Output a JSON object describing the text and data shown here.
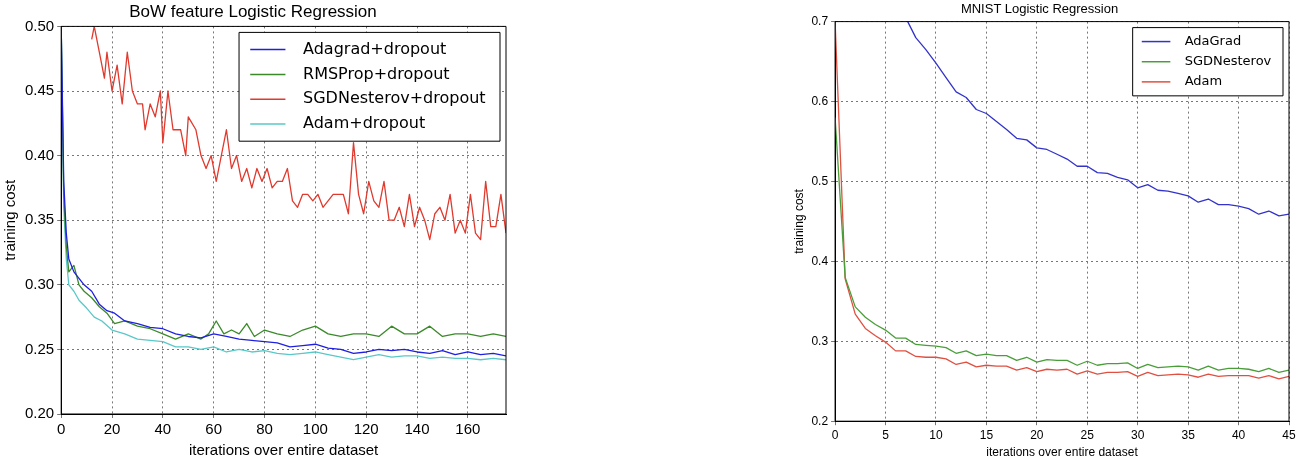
{
  "chart_data": [
    {
      "type": "line",
      "title": "BoW feature Logistic Regression",
      "xlabel": "iterations over entire dataset",
      "ylabel": "training cost",
      "xlim": [
        0,
        175
      ],
      "xticks": [
        0,
        20,
        40,
        60,
        80,
        100,
        120,
        140,
        160
      ],
      "ylim": [
        0.2,
        0.5
      ],
      "yticks": [
        {
          "value": 0.2,
          "label": "0.20"
        },
        {
          "value": 0.25,
          "label": "0.25"
        },
        {
          "value": 0.3,
          "label": "0.30"
        },
        {
          "value": 0.35,
          "label": "0.35"
        },
        {
          "value": 0.4,
          "label": "0.40"
        },
        {
          "value": 0.45,
          "label": "0.45"
        },
        {
          "value": 0.5,
          "label": "0.50"
        }
      ],
      "grid": true,
      "legend": "top right",
      "marker": "none",
      "line_style": "solid",
      "series": [
        {
          "name": "Adagrad+dropout",
          "color": "#1f1fe0",
          "x": [
            0,
            1,
            2,
            3,
            5,
            7,
            9,
            12,
            15,
            18,
            21,
            25,
            30,
            35,
            40,
            45,
            50,
            55,
            60,
            65,
            70,
            75,
            80,
            85,
            90,
            95,
            100,
            105,
            110,
            115,
            120,
            125,
            130,
            135,
            140,
            145,
            150,
            155,
            160,
            165,
            170,
            175
          ],
          "values": [
            0.5,
            0.38,
            0.34,
            0.32,
            0.31,
            0.305,
            0.3,
            0.295,
            0.285,
            0.28,
            0.278,
            0.272,
            0.27,
            0.267,
            0.266,
            0.262,
            0.26,
            0.259,
            0.262,
            0.26,
            0.258,
            0.257,
            0.256,
            0.255,
            0.252,
            0.253,
            0.254,
            0.251,
            0.25,
            0.247,
            0.248,
            0.25,
            0.249,
            0.25,
            0.248,
            0.247,
            0.249,
            0.246,
            0.248,
            0.246,
            0.247,
            0.245
          ]
        },
        {
          "name": "RMSProp+dropout",
          "color": "#3a8a2a",
          "x": [
            0,
            1,
            2,
            3,
            5,
            7,
            9,
            12,
            15,
            18,
            21,
            25,
            30,
            35,
            40,
            45,
            50,
            55,
            58,
            61,
            64,
            67,
            70,
            73,
            76,
            80,
            85,
            90,
            95,
            100,
            105,
            110,
            115,
            120,
            125,
            130,
            135,
            140,
            145,
            150,
            155,
            160,
            165,
            170,
            175
          ],
          "values": [
            0.5,
            0.37,
            0.33,
            0.31,
            0.315,
            0.3,
            0.295,
            0.29,
            0.283,
            0.278,
            0.27,
            0.272,
            0.268,
            0.266,
            0.262,
            0.258,
            0.262,
            0.258,
            0.262,
            0.272,
            0.262,
            0.265,
            0.262,
            0.27,
            0.26,
            0.265,
            0.262,
            0.26,
            0.265,
            0.268,
            0.262,
            0.26,
            0.262,
            0.262,
            0.26,
            0.268,
            0.262,
            0.262,
            0.268,
            0.26,
            0.262,
            0.262,
            0.26,
            0.262,
            0.26
          ]
        },
        {
          "name": "SGDNesterov+dropout",
          "color": "#e03a2e",
          "x": [
            12,
            13,
            15,
            17,
            18,
            20,
            22,
            24,
            25,
            26,
            28,
            30,
            32,
            33,
            35,
            37,
            39,
            40,
            42,
            44,
            47,
            49,
            50,
            53,
            55,
            57,
            59,
            61,
            63,
            65,
            67,
            69,
            71,
            73,
            75,
            77,
            79,
            81,
            83,
            85,
            87,
            89,
            91,
            93,
            95,
            97,
            99,
            101,
            103,
            105,
            107,
            109,
            111,
            113,
            115,
            117,
            119,
            121,
            123,
            125,
            127,
            129,
            131,
            133,
            135,
            137,
            139,
            141,
            143,
            145,
            147,
            149,
            151,
            153,
            155,
            157,
            159,
            161,
            163,
            165,
            167,
            169,
            171,
            173,
            175
          ],
          "values": [
            0.49,
            0.5,
            0.48,
            0.46,
            0.48,
            0.45,
            0.47,
            0.44,
            0.46,
            0.48,
            0.45,
            0.44,
            0.44,
            0.42,
            0.44,
            0.43,
            0.45,
            0.41,
            0.45,
            0.42,
            0.42,
            0.4,
            0.43,
            0.42,
            0.4,
            0.39,
            0.4,
            0.38,
            0.4,
            0.42,
            0.39,
            0.4,
            0.38,
            0.39,
            0.375,
            0.39,
            0.38,
            0.39,
            0.375,
            0.38,
            0.38,
            0.39,
            0.365,
            0.36,
            0.37,
            0.37,
            0.365,
            0.37,
            0.36,
            0.365,
            0.37,
            0.37,
            0.37,
            0.355,
            0.41,
            0.37,
            0.355,
            0.38,
            0.365,
            0.36,
            0.38,
            0.35,
            0.35,
            0.36,
            0.345,
            0.37,
            0.345,
            0.36,
            0.35,
            0.335,
            0.355,
            0.36,
            0.35,
            0.37,
            0.34,
            0.35,
            0.34,
            0.37,
            0.34,
            0.335,
            0.38,
            0.345,
            0.345,
            0.37,
            0.34
          ]
        },
        {
          "name": "Adam+dropout",
          "color": "#5ac8c8",
          "x": [
            0,
            1,
            2,
            3,
            5,
            7,
            10,
            13,
            16,
            20,
            25,
            30,
            35,
            40,
            45,
            50,
            55,
            60,
            65,
            70,
            75,
            80,
            85,
            90,
            95,
            100,
            105,
            110,
            115,
            120,
            125,
            130,
            135,
            140,
            145,
            150,
            155,
            160,
            165,
            170,
            175
          ],
          "values": [
            0.5,
            0.36,
            0.32,
            0.3,
            0.295,
            0.288,
            0.282,
            0.275,
            0.272,
            0.265,
            0.262,
            0.258,
            0.257,
            0.256,
            0.252,
            0.252,
            0.25,
            0.252,
            0.248,
            0.25,
            0.248,
            0.249,
            0.247,
            0.246,
            0.247,
            0.248,
            0.246,
            0.244,
            0.242,
            0.244,
            0.246,
            0.244,
            0.245,
            0.245,
            0.243,
            0.244,
            0.243,
            0.243,
            0.242,
            0.243,
            0.242
          ]
        }
      ]
    },
    {
      "type": "line",
      "title": "MNIST Logistic Regression",
      "xlabel": "iterations over entire dataset",
      "ylabel": "training cost",
      "xlim": [
        0,
        45
      ],
      "xticks": [
        0,
        5,
        10,
        15,
        20,
        25,
        30,
        35,
        40,
        45
      ],
      "ylim": [
        0.2,
        0.7
      ],
      "yticks": [
        0.2,
        0.3,
        0.4,
        0.5,
        0.6,
        0.7
      ],
      "grid": true,
      "legend": "top right",
      "marker": "none",
      "line_style": "solid",
      "series": [
        {
          "name": "AdaGrad",
          "color": "#3333cc",
          "x": [
            7.2,
            8,
            9,
            10,
            11,
            12,
            13,
            14,
            15,
            16,
            17,
            18,
            19,
            20,
            21,
            22,
            23,
            24,
            25,
            26,
            27,
            28,
            29,
            30,
            31,
            32,
            33,
            34,
            35,
            36,
            37,
            38,
            39,
            40,
            41,
            42,
            43,
            44,
            45
          ],
          "values": [
            0.7,
            0.68,
            0.665,
            0.648,
            0.63,
            0.612,
            0.605,
            0.59,
            0.585,
            0.575,
            0.565,
            0.554,
            0.552,
            0.542,
            0.54,
            0.534,
            0.528,
            0.519,
            0.519,
            0.511,
            0.51,
            0.505,
            0.502,
            0.492,
            0.496,
            0.489,
            0.488,
            0.485,
            0.482,
            0.474,
            0.478,
            0.471,
            0.471,
            0.469,
            0.466,
            0.459,
            0.463,
            0.457,
            0.459
          ]
        },
        {
          "name": "SGDNesterov",
          "color": "#4a9e3a",
          "x": [
            0,
            1,
            2,
            3,
            4,
            5,
            6,
            7,
            8,
            9,
            10,
            11,
            12,
            13,
            14,
            15,
            16,
            17,
            18,
            19,
            20,
            21,
            22,
            23,
            24,
            25,
            26,
            27,
            28,
            29,
            30,
            31,
            32,
            33,
            34,
            35,
            36,
            37,
            38,
            39,
            40,
            41,
            42,
            43,
            44,
            45
          ],
          "values": [
            0.58,
            0.38,
            0.343,
            0.33,
            0.321,
            0.314,
            0.304,
            0.304,
            0.296,
            0.295,
            0.294,
            0.292,
            0.285,
            0.288,
            0.282,
            0.284,
            0.282,
            0.282,
            0.276,
            0.28,
            0.274,
            0.277,
            0.276,
            0.276,
            0.27,
            0.275,
            0.27,
            0.272,
            0.272,
            0.273,
            0.266,
            0.271,
            0.267,
            0.268,
            0.269,
            0.268,
            0.264,
            0.269,
            0.264,
            0.266,
            0.266,
            0.265,
            0.262,
            0.266,
            0.261,
            0.264
          ]
        },
        {
          "name": "Adam",
          "color": "#e05040",
          "x": [
            0,
            1,
            2,
            3,
            4,
            5,
            6,
            7,
            8,
            9,
            10,
            11,
            12,
            13,
            14,
            15,
            16,
            17,
            18,
            19,
            20,
            21,
            22,
            23,
            24,
            25,
            26,
            27,
            28,
            29,
            30,
            31,
            32,
            33,
            34,
            35,
            36,
            37,
            38,
            39,
            40,
            41,
            42,
            43,
            44,
            45
          ],
          "values": [
            0.7,
            0.378,
            0.334,
            0.316,
            0.307,
            0.299,
            0.288,
            0.288,
            0.281,
            0.28,
            0.28,
            0.278,
            0.271,
            0.274,
            0.268,
            0.27,
            0.269,
            0.269,
            0.264,
            0.267,
            0.262,
            0.265,
            0.264,
            0.265,
            0.259,
            0.263,
            0.259,
            0.261,
            0.261,
            0.262,
            0.256,
            0.261,
            0.257,
            0.258,
            0.259,
            0.258,
            0.255,
            0.259,
            0.256,
            0.257,
            0.257,
            0.257,
            0.254,
            0.257,
            0.253,
            0.256
          ]
        }
      ]
    }
  ]
}
